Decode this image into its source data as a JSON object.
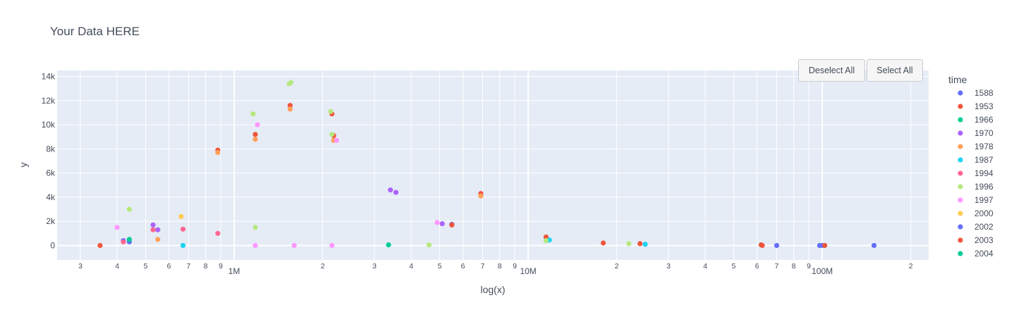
{
  "chart_data": {
    "type": "scatter",
    "title": "Your Data HERE",
    "xlabel": "log(x)",
    "ylabel": "y",
    "x_scale": "log",
    "xlim": [
      250000,
      230000000
    ],
    "ylim": [
      -1200,
      14500
    ],
    "grid": true,
    "legend_title": "time",
    "legend_position": "right",
    "y_ticks": [
      {
        "value": 0,
        "label": "0"
      },
      {
        "value": 2000,
        "label": "2k"
      },
      {
        "value": 4000,
        "label": "4k"
      },
      {
        "value": 6000,
        "label": "6k"
      },
      {
        "value": 8000,
        "label": "8k"
      },
      {
        "value": 10000,
        "label": "10k"
      },
      {
        "value": 12000,
        "label": "12k"
      },
      {
        "value": 14000,
        "label": "14k"
      }
    ],
    "x_major_ticks": [
      {
        "value": 1000000,
        "label": "1M"
      },
      {
        "value": 10000000,
        "label": "10M"
      },
      {
        "value": 100000000,
        "label": "100M"
      }
    ],
    "x_minor_ticks": [
      {
        "value": 300000,
        "label": "3"
      },
      {
        "value": 400000,
        "label": "4"
      },
      {
        "value": 500000,
        "label": "5"
      },
      {
        "value": 600000,
        "label": "6"
      },
      {
        "value": 700000,
        "label": "7"
      },
      {
        "value": 800000,
        "label": "8"
      },
      {
        "value": 900000,
        "label": "9"
      },
      {
        "value": 2000000,
        "label": "2"
      },
      {
        "value": 3000000,
        "label": "3"
      },
      {
        "value": 4000000,
        "label": "4"
      },
      {
        "value": 5000000,
        "label": "5"
      },
      {
        "value": 6000000,
        "label": "6"
      },
      {
        "value": 7000000,
        "label": "7"
      },
      {
        "value": 8000000,
        "label": "8"
      },
      {
        "value": 9000000,
        "label": "9"
      },
      {
        "value": 20000000,
        "label": "2"
      },
      {
        "value": 30000000,
        "label": "3"
      },
      {
        "value": 40000000,
        "label": "4"
      },
      {
        "value": 50000000,
        "label": "5"
      },
      {
        "value": 60000000,
        "label": "6"
      },
      {
        "value": 70000000,
        "label": "7"
      },
      {
        "value": 80000000,
        "label": "8"
      },
      {
        "value": 90000000,
        "label": "9"
      },
      {
        "value": 200000000,
        "label": "2"
      }
    ],
    "series": [
      {
        "name": "1588",
        "color": "#636efa",
        "points": [
          [
            420000,
            400
          ],
          [
            440000,
            300
          ],
          [
            5500000,
            1750
          ],
          [
            70000000,
            0
          ],
          [
            100000000,
            0
          ],
          [
            150000000,
            0
          ]
        ]
      },
      {
        "name": "1953",
        "color": "#ef553b",
        "points": [
          [
            350000,
            0
          ],
          [
            5500000,
            1700
          ],
          [
            6900000,
            4300
          ],
          [
            880000,
            7900
          ],
          [
            1180000,
            9200
          ],
          [
            1550000,
            11600
          ],
          [
            2150000,
            10900
          ],
          [
            2180000,
            9100
          ],
          [
            11500000,
            700
          ],
          [
            18000000,
            200
          ],
          [
            24000000,
            150
          ],
          [
            62000000,
            50
          ],
          [
            102000000,
            0
          ]
        ]
      },
      {
        "name": "1966",
        "color": "#00cc96",
        "points": [
          [
            440000,
            500
          ],
          [
            3350000,
            50
          ]
        ]
      },
      {
        "name": "1970",
        "color": "#ab63fa",
        "points": [
          [
            530000,
            1700
          ],
          [
            550000,
            1300
          ],
          [
            3400000,
            4600
          ],
          [
            3550000,
            4400
          ],
          [
            5100000,
            1800
          ]
        ]
      },
      {
        "name": "1978",
        "color": "#ffa15a",
        "points": [
          [
            550000,
            500
          ],
          [
            6900000,
            4100
          ],
          [
            880000,
            7700
          ],
          [
            1180000,
            8800
          ],
          [
            1550000,
            11300
          ],
          [
            2180000,
            8700
          ]
        ]
      },
      {
        "name": "1987",
        "color": "#19d3f3",
        "points": [
          [
            670000,
            0
          ],
          [
            11800000,
            450
          ],
          [
            25000000,
            100
          ]
        ]
      },
      {
        "name": "1994",
        "color": "#ff6692",
        "points": [
          [
            420000,
            300
          ],
          [
            530000,
            1300
          ],
          [
            670000,
            1350
          ],
          [
            880000,
            1000
          ]
        ]
      },
      {
        "name": "1996",
        "color": "#b6e880",
        "points": [
          [
            440000,
            3000
          ],
          [
            1160000,
            10900
          ],
          [
            1180000,
            1500
          ],
          [
            1540000,
            13400
          ],
          [
            1560000,
            13500
          ],
          [
            2130000,
            11100
          ],
          [
            2150000,
            9200
          ],
          [
            4600000,
            50
          ],
          [
            11500000,
            400
          ],
          [
            22000000,
            150
          ]
        ]
      },
      {
        "name": "1997",
        "color": "#ff97ff",
        "points": [
          [
            400000,
            1500
          ],
          [
            1200000,
            10000
          ],
          [
            1180000,
            0
          ],
          [
            1600000,
            0
          ],
          [
            2150000,
            0
          ],
          [
            2230000,
            8700
          ],
          [
            4900000,
            1900
          ]
        ]
      },
      {
        "name": "2000",
        "color": "#fecb52",
        "points": [
          [
            660000,
            2400
          ]
        ]
      },
      {
        "name": "2002",
        "color": "#636efa",
        "points": [
          [
            98000000,
            0
          ]
        ]
      },
      {
        "name": "2003",
        "color": "#ef553b",
        "points": [
          [
            62500000,
            0
          ]
        ]
      },
      {
        "name": "2004",
        "color": "#00cc96",
        "points": []
      }
    ]
  },
  "buttons": {
    "deselect_all": "Deselect All",
    "select_all": "Select All"
  }
}
